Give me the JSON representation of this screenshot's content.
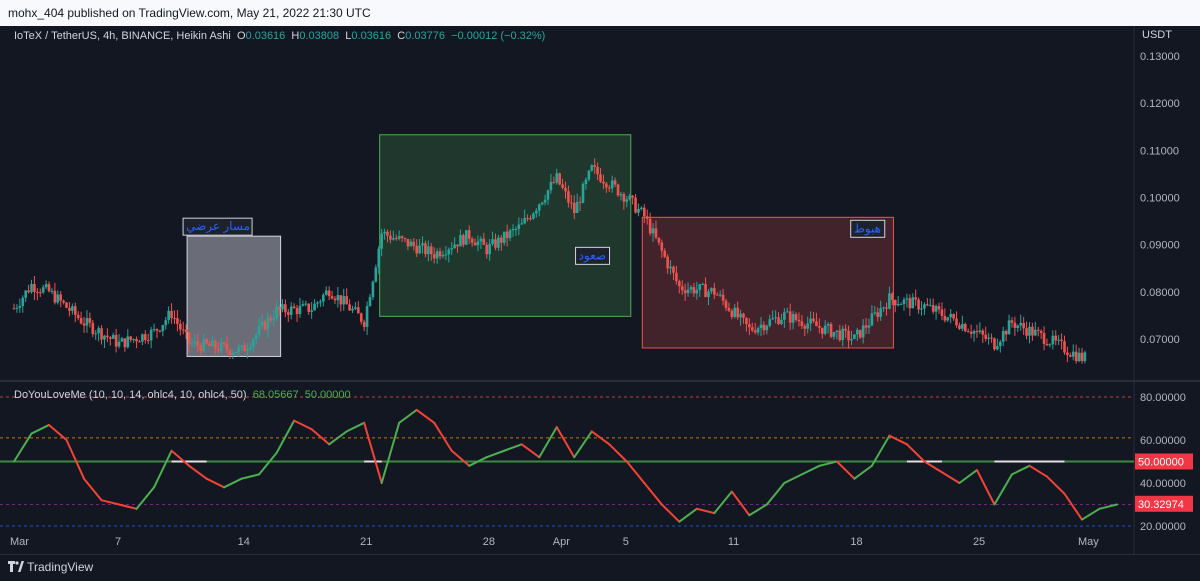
{
  "header": {
    "published": "mohx_404 published on TradingView.com, May 21, 2022 21:30 UTC"
  },
  "legend": {
    "symbol": "IoTeX / TetherUS, 4h, BINANCE, Heikin Ashi",
    "o_label": "O",
    "o": "0.03616",
    "h_label": "H",
    "h": "0.03808",
    "l_label": "L",
    "l": "0.03616",
    "c_label": "C",
    "c": "0.03776",
    "change": "−0.00012 (−0.32%)"
  },
  "indicator": {
    "name": "DoYouLoveMe (10, 10, 14, ohlc4, 10, ohlc4, 50)",
    "v1": "68.05667",
    "v2": "50.00000"
  },
  "footer": {
    "brand": "TradingView"
  },
  "colors": {
    "up": "#26a69a",
    "down": "#ef5350",
    "bg": "#131722",
    "osc_up": "#4caf50",
    "osc_down": "#f44336"
  },
  "chart_data": [
    {
      "type": "candlestick",
      "unit": "USDT",
      "ylim": [
        0.063,
        0.135
      ],
      "yticks": [
        "0.13000",
        "0.12000",
        "0.11000",
        "0.10000",
        "0.09000",
        "0.08000",
        "0.07000"
      ],
      "xticks": [
        "Mar",
        "7",
        "14",
        "21",
        "28",
        "Apr",
        "5",
        "11",
        "18",
        "25",
        "May"
      ],
      "price_path": [
        {
          "x": "Mar 1",
          "y": 0.0765
        },
        {
          "x": "Mar 2",
          "y": 0.0815
        },
        {
          "x": "Mar 3",
          "y": 0.08
        },
        {
          "x": "Mar 5",
          "y": 0.0735
        },
        {
          "x": "Mar 7",
          "y": 0.069
        },
        {
          "x": "Mar 9",
          "y": 0.0715
        },
        {
          "x": "Mar 10",
          "y": 0.0755
        },
        {
          "x": "Mar 11",
          "y": 0.069
        },
        {
          "x": "Mar 14",
          "y": 0.0675
        },
        {
          "x": "Mar 16",
          "y": 0.076
        },
        {
          "x": "Mar 18",
          "y": 0.0765
        },
        {
          "x": "Mar 19",
          "y": 0.0805
        },
        {
          "x": "Mar 21",
          "y": 0.0738
        },
        {
          "x": "Mar 22",
          "y": 0.0925
        },
        {
          "x": "Mar 25",
          "y": 0.088
        },
        {
          "x": "Mar 27",
          "y": 0.092
        },
        {
          "x": "Mar 28",
          "y": 0.089
        },
        {
          "x": "Mar 30",
          "y": 0.094
        },
        {
          "x": "Apr 1",
          "y": 0.104
        },
        {
          "x": "Apr 2",
          "y": 0.097
        },
        {
          "x": "Apr 3",
          "y": 0.106
        },
        {
          "x": "Apr 5",
          "y": 0.1
        },
        {
          "x": "Apr 6",
          "y": 0.096
        },
        {
          "x": "Apr 8",
          "y": 0.081
        },
        {
          "x": "Apr 10",
          "y": 0.08
        },
        {
          "x": "Apr 12",
          "y": 0.072
        },
        {
          "x": "Apr 14",
          "y": 0.075
        },
        {
          "x": "Apr 18",
          "y": 0.07
        },
        {
          "x": "Apr 20",
          "y": 0.0785
        },
        {
          "x": "Apr 22",
          "y": 0.077
        },
        {
          "x": "Apr 24",
          "y": 0.0735
        },
        {
          "x": "Apr 26",
          "y": 0.069
        },
        {
          "x": "Apr 27",
          "y": 0.0735
        },
        {
          "x": "Apr 29",
          "y": 0.07
        },
        {
          "x": "May 1",
          "y": 0.066
        }
      ],
      "annotations": [
        {
          "label": "مسار عرضي",
          "from": "Mar 11",
          "to": "Mar 16",
          "low": 0.0663,
          "high": 0.0918
        },
        {
          "label": "صعود",
          "from": "Mar 22",
          "to": "Apr 5",
          "low": 0.0748,
          "high": 0.1133
        },
        {
          "label": "هبوط",
          "from": "Apr 6",
          "to": "Apr 20",
          "low": 0.0681,
          "high": 0.0958
        }
      ]
    },
    {
      "type": "line",
      "name": "DoYouLoveMe",
      "ylim": [
        17,
        86
      ],
      "yticks": [
        "80.00000",
        "60.00000",
        "40.00000",
        "20.00000"
      ],
      "levels": [
        80,
        61,
        50,
        30,
        20
      ],
      "current": [
        "50.00000",
        "30.32974"
      ],
      "x": [
        "Mar 1",
        "Mar 2",
        "Mar 3",
        "Mar 4",
        "Mar 5",
        "Mar 6",
        "Mar 8",
        "Mar 9",
        "Mar 10",
        "Mar 11",
        "Mar 12",
        "Mar 13",
        "Mar 14",
        "Mar 15",
        "Mar 16",
        "Mar 17",
        "Mar 18",
        "Mar 19",
        "Mar 20",
        "Mar 21",
        "Mar 22",
        "Mar 23",
        "Mar 24",
        "Mar 25",
        "Mar 26",
        "Mar 27",
        "Mar 28",
        "Mar 29",
        "Mar 30",
        "Mar 31",
        "Apr 1",
        "Apr 2",
        "Apr 3",
        "Apr 4",
        "Apr 5",
        "Apr 6",
        "Apr 7",
        "Apr 8",
        "Apr 9",
        "Apr 10",
        "Apr 11",
        "Apr 12",
        "Apr 13",
        "Apr 14",
        "Apr 15",
        "Apr 16",
        "Apr 17",
        "Apr 18",
        "Apr 19",
        "Apr 20",
        "Apr 21",
        "Apr 22",
        "Apr 23",
        "Apr 24",
        "Apr 25",
        "Apr 26",
        "Apr 27",
        "Apr 28",
        "Apr 29",
        "Apr 30",
        "May 1",
        "May 2",
        "May 3"
      ],
      "values": [
        50,
        63,
        67,
        60,
        42,
        32,
        28,
        38,
        55,
        48,
        42,
        38,
        42,
        44,
        54,
        69,
        65,
        58,
        64,
        68,
        40,
        68,
        74,
        68,
        55,
        48,
        52,
        55,
        58,
        52,
        66,
        52,
        64,
        58,
        50,
        40,
        30,
        22,
        28,
        26,
        36,
        25,
        30,
        40,
        44,
        48,
        50,
        42,
        48,
        62,
        58,
        50,
        45,
        40,
        46,
        30,
        44,
        48,
        43,
        35,
        23,
        28,
        30
      ]
    }
  ]
}
